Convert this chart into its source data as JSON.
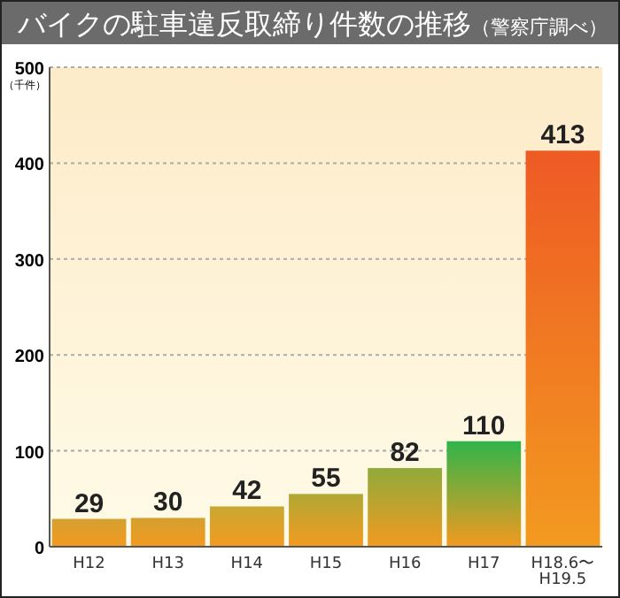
{
  "chart_data": {
    "type": "bar",
    "title": "バイクの駐車違反取締り件数の推移",
    "subtitle": "（警察庁調べ）",
    "ylabel": "（千件）",
    "categories": [
      "H12",
      "H13",
      "H14",
      "H15",
      "H16",
      "H17",
      "H18.6〜H19.5"
    ],
    "values": [
      29,
      30,
      42,
      55,
      82,
      110,
      413
    ],
    "colors": [
      "#d4a030",
      "#d4a030",
      "#c8a832",
      "#b0a835",
      "#8fab3a",
      "#2fb54a",
      "#ee5a24"
    ],
    "ylim": [
      0,
      500
    ],
    "yticks": [
      0,
      100,
      200,
      300,
      400,
      500
    ],
    "grid": "y",
    "data_labels": true
  }
}
